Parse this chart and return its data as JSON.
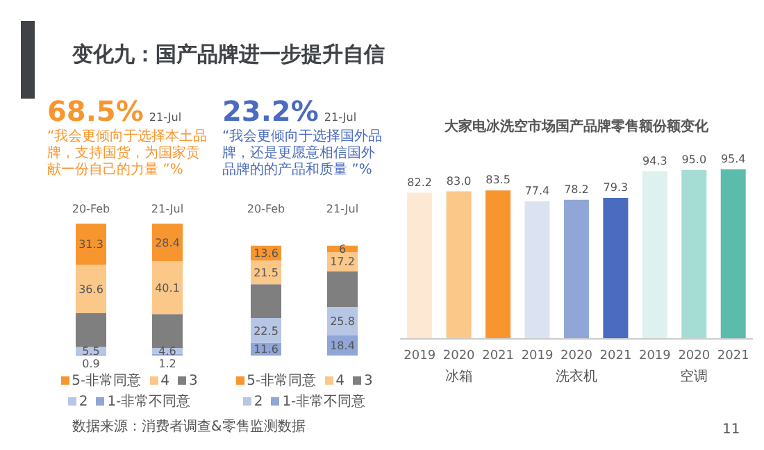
{
  "chart_data": [
    {
      "type": "other",
      "title": "变化九：国产品牌进一步提升自信",
      "annotations": [
        "数据来源：消费者调查&零售监测数据",
        "11"
      ]
    },
    {
      "type": "bar",
      "title": "68.5%",
      "annotations": [
        "21-Jul"
      ],
      "subtitle": "“我会更倾向于选择本土品牌，支持国货，为国家贡献一份自己的力量 ”%",
      "categories": [
        "20-Feb",
        "21-Jul"
      ],
      "stacked": true,
      "legend": "bottom",
      "series": [
        {
          "name": "1-非常不同意",
          "color": "#8fa6d6",
          "values": [
            0.9,
            1.2
          ],
          "value_labels": [
            "0.9",
            "1.2"
          ]
        },
        {
          "name": "2",
          "color": "#b8c6e6",
          "values": [
            5.5,
            4.6
          ],
          "value_labels": [
            "5.5",
            "4.6"
          ]
        },
        {
          "name": "3",
          "color": "#7f7f7f",
          "values": [
            25.7,
            25.7
          ],
          "value_labels": [
            null,
            null
          ]
        },
        {
          "name": "4",
          "color": "#fbc88a",
          "values": [
            36.6,
            40.1
          ],
          "value_labels": [
            "36.6",
            "40.1"
          ]
        },
        {
          "name": "5-非常同意",
          "color": "#f7962f",
          "values": [
            31.3,
            28.4
          ],
          "value_labels": [
            "31.3",
            "28.4"
          ]
        }
      ]
    },
    {
      "type": "bar",
      "title": "23.2%",
      "annotations": [
        "21-Jul"
      ],
      "subtitle": "“我会更倾向于选择国外品牌，还是更愿意相信国外品牌的的产品和质量 ”%",
      "categories": [
        "20-Feb",
        "21-Jul"
      ],
      "stacked": true,
      "legend": "bottom",
      "series": [
        {
          "name": "1-非常不同意",
          "color": "#8fa6d6",
          "values": [
            11.6,
            18.4
          ],
          "value_labels": [
            "11.6",
            "18.4"
          ]
        },
        {
          "name": "2",
          "color": "#b8c6e6",
          "values": [
            22.5,
            25.8
          ],
          "value_labels": [
            "22.5",
            "25.8"
          ]
        },
        {
          "name": "3",
          "color": "#7f7f7f",
          "values": [
            30.8,
            32.6
          ],
          "value_labels": [
            null,
            null
          ]
        },
        {
          "name": "4",
          "color": "#fbc88a",
          "values": [
            21.5,
            17.2
          ],
          "value_labels": [
            "21.5",
            "17.2"
          ]
        },
        {
          "name": "5-非常同意",
          "color": "#f7962f",
          "values": [
            13.6,
            6
          ],
          "value_labels": [
            "13.6",
            "6"
          ]
        }
      ]
    },
    {
      "type": "bar",
      "title": "大家电冰洗空市场国产品牌零售额份额变化",
      "categories": [
        "2019",
        "2020",
        "2021",
        "2019",
        "2020",
        "2021",
        "2019",
        "2020",
        "2021"
      ],
      "annotations": [
        "冰箱",
        "洗衣机",
        "空调"
      ],
      "values": [
        82.2,
        83.0,
        83.5,
        77.4,
        78.2,
        79.3,
        94.3,
        95.0,
        95.4
      ],
      "value_labels": [
        "82.2",
        "83.0",
        "83.5",
        "77.4",
        "78.2",
        "79.3",
        "94.3",
        "95.0",
        "95.4"
      ],
      "colors": [
        "#fde9d3",
        "#fbc88a",
        "#f7962f",
        "#dbe2f2",
        "#8fa6d6",
        "#4a6bbf",
        "#dff1ee",
        "#a5dcd3",
        "#5bbcac"
      ]
    }
  ]
}
